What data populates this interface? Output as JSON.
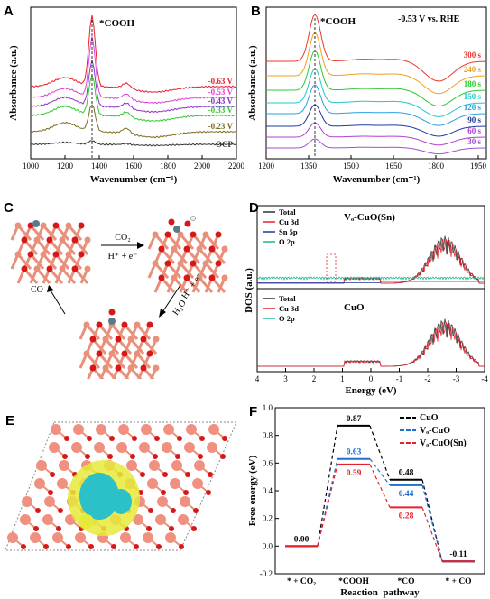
{
  "panels": {
    "A": {
      "label": "A",
      "ylabel": "Absorbance (a.u.)",
      "xlabel": "Wavenumber (cm⁻¹)",
      "annotation": "*COOH",
      "xticks": [
        "1000",
        "1200",
        "1400",
        "1600",
        "1800",
        "2000",
        "2200"
      ],
      "curve_labels": [
        "-0.63 V",
        "-0.53 V",
        "-0.43 V",
        "-0.33 V",
        "-0.23 V",
        "OCP"
      ],
      "curve_colors": [
        "#e8202a",
        "#e040d8",
        "#8a33cc",
        "#30c830",
        "#7a6a1e",
        "#333333"
      ]
    },
    "B": {
      "label": "B",
      "ylabel": "Absorbance (a.u.)",
      "xlabel": "Wavenumber (cm⁻¹)",
      "annotation": "*COOH",
      "potential": "-0.53 V vs. RHE",
      "xticks": [
        "1200",
        "1350",
        "1500",
        "1650",
        "1800",
        "1950"
      ],
      "curve_labels": [
        "300 s",
        "240 s",
        "180 s",
        "150 s",
        "120 s",
        "90 s",
        "60 s",
        "30 s"
      ],
      "curve_colors": [
        "#e8392a",
        "#f0a020",
        "#30c830",
        "#20c8c8",
        "#2aa0e0",
        "#1f3aa0",
        "#b040d0",
        "#a050d0"
      ]
    },
    "C": {
      "label": "C",
      "step1_top": "CO₂",
      "step1_bottom": "H⁺ + e⁻",
      "step2": "H⁺ + e⁻",
      "step2b": "H₂O",
      "step3": "CO"
    },
    "D": {
      "label": "D",
      "ylabel": "DOS (a.u.)",
      "xlabel": "Energy (eV)",
      "xticks": [
        "4",
        "3",
        "2",
        "1",
        "0",
        "-1",
        "-2",
        "-3",
        "-4"
      ],
      "top_title": "Vₒ-CuO(Sn)",
      "top_legend": [
        "Total",
        "Cu 3d",
        "Sn 5p",
        "O 2p"
      ],
      "top_colors": [
        "#333333",
        "#e8202a",
        "#1f3aa0",
        "#20b890"
      ],
      "bottom_title": "CuO",
      "bottom_legend": [
        "Total",
        "Cu 3d",
        "O 2p"
      ],
      "bottom_colors": [
        "#333333",
        "#e8202a",
        "#20b890"
      ]
    },
    "E": {
      "label": "E"
    },
    "F": {
      "label": "F"
    }
  },
  "chart_data": {
    "type": "line",
    "title": "",
    "xlabel": "Reaction  pathway",
    "ylabel": "Free energy (eV)",
    "categories": [
      "* + CO₂",
      "*COOH",
      "*CO",
      "* + CO"
    ],
    "ylim": [
      -0.2,
      1.0
    ],
    "yticks": [
      "-0.2",
      "0.0",
      "0.2",
      "0.4",
      "0.6",
      "0.8",
      "1.0"
    ],
    "legend_position": "top-right",
    "series": [
      {
        "name": "CuO",
        "color": "#000000",
        "values": [
          0.0,
          0.87,
          0.48,
          -0.11
        ]
      },
      {
        "name": "Vₒ-CuO",
        "color": "#1f6fd0",
        "values": [
          0.0,
          0.63,
          0.44,
          -0.11
        ]
      },
      {
        "name": "Vₒ-CuO(Sn)",
        "color": "#e8202a",
        "values": [
          0.0,
          0.59,
          0.28,
          -0.11
        ]
      }
    ],
    "labels": [
      {
        "text": "0.00"
      },
      {
        "text": "0.87"
      },
      {
        "text": "0.63"
      },
      {
        "text": "0.59"
      },
      {
        "text": "0.48"
      },
      {
        "text": "0.44"
      },
      {
        "text": "0.28"
      },
      {
        "text": "-0.11"
      }
    ]
  }
}
